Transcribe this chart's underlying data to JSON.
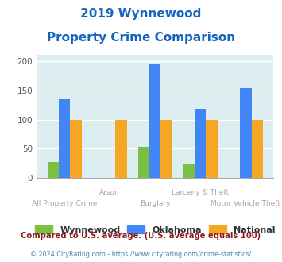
{
  "title_line1": "2019 Wynnewood",
  "title_line2": "Property Crime Comparison",
  "categories": [
    "All Property Crime",
    "Arson",
    "Burglary",
    "Larceny & Theft",
    "Motor Vehicle Theft"
  ],
  "wynnewood": [
    28,
    0,
    54,
    25,
    0
  ],
  "oklahoma": [
    135,
    0,
    196,
    119,
    153
  ],
  "national": [
    100,
    100,
    100,
    100,
    100
  ],
  "color_wynnewood": "#7bc043",
  "color_oklahoma": "#4285f4",
  "color_national": "#f5a623",
  "ylim": [
    0,
    210
  ],
  "yticks": [
    0,
    50,
    100,
    150,
    200
  ],
  "bg_color": "#ddeef0",
  "title_color": "#1565c0",
  "xlabel_color": "#b0a0b0",
  "legend_labels": [
    "Wynnewood",
    "Oklahoma",
    "National"
  ],
  "footnote1": "Compared to U.S. average. (U.S. average equals 100)",
  "footnote2": "© 2024 CityRating.com - https://www.cityrating.com/crime-statistics/",
  "footnote1_color": "#8b1a1a",
  "footnote2_color": "#4488aa"
}
